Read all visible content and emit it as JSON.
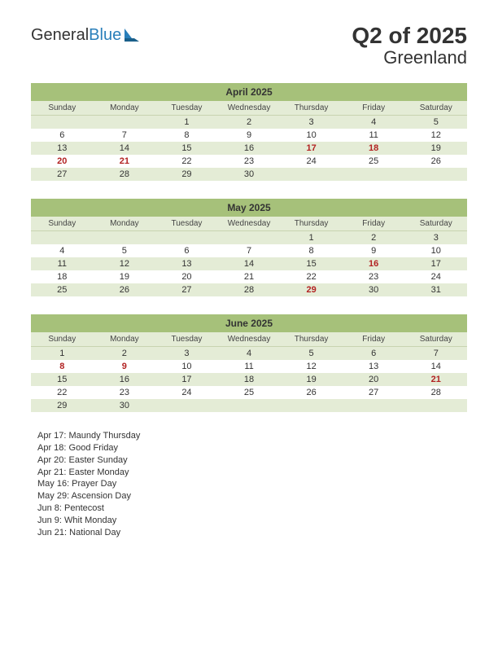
{
  "logo": {
    "text_a": "General",
    "text_b": "Blue"
  },
  "title": {
    "main": "Q2 of 2025",
    "sub": "Greenland"
  },
  "colors": {
    "header_bg": "#a6c17a",
    "shade_bg": "#e4ecd6",
    "holiday": "#b22222"
  },
  "day_headers": [
    "Sunday",
    "Monday",
    "Tuesday",
    "Wednesday",
    "Thursday",
    "Friday",
    "Saturday"
  ],
  "months": [
    {
      "title": "April 2025",
      "rows": [
        {
          "shade": true,
          "cells": [
            {
              "t": ""
            },
            {
              "t": ""
            },
            {
              "t": "1"
            },
            {
              "t": "2"
            },
            {
              "t": "3"
            },
            {
              "t": "4"
            },
            {
              "t": "5"
            }
          ]
        },
        {
          "shade": false,
          "cells": [
            {
              "t": "6"
            },
            {
              "t": "7"
            },
            {
              "t": "8"
            },
            {
              "t": "9"
            },
            {
              "t": "10"
            },
            {
              "t": "11"
            },
            {
              "t": "12"
            }
          ]
        },
        {
          "shade": true,
          "cells": [
            {
              "t": "13"
            },
            {
              "t": "14"
            },
            {
              "t": "15"
            },
            {
              "t": "16"
            },
            {
              "t": "17",
              "h": true
            },
            {
              "t": "18",
              "h": true
            },
            {
              "t": "19"
            }
          ]
        },
        {
          "shade": false,
          "cells": [
            {
              "t": "20",
              "h": true
            },
            {
              "t": "21",
              "h": true
            },
            {
              "t": "22"
            },
            {
              "t": "23"
            },
            {
              "t": "24"
            },
            {
              "t": "25"
            },
            {
              "t": "26"
            }
          ]
        },
        {
          "shade": true,
          "cells": [
            {
              "t": "27"
            },
            {
              "t": "28"
            },
            {
              "t": "29"
            },
            {
              "t": "30"
            },
            {
              "t": ""
            },
            {
              "t": ""
            },
            {
              "t": ""
            }
          ]
        }
      ]
    },
    {
      "title": "May 2025",
      "rows": [
        {
          "shade": true,
          "cells": [
            {
              "t": ""
            },
            {
              "t": ""
            },
            {
              "t": ""
            },
            {
              "t": ""
            },
            {
              "t": "1"
            },
            {
              "t": "2"
            },
            {
              "t": "3"
            }
          ]
        },
        {
          "shade": false,
          "cells": [
            {
              "t": "4"
            },
            {
              "t": "5"
            },
            {
              "t": "6"
            },
            {
              "t": "7"
            },
            {
              "t": "8"
            },
            {
              "t": "9"
            },
            {
              "t": "10"
            }
          ]
        },
        {
          "shade": true,
          "cells": [
            {
              "t": "11"
            },
            {
              "t": "12"
            },
            {
              "t": "13"
            },
            {
              "t": "14"
            },
            {
              "t": "15"
            },
            {
              "t": "16",
              "h": true
            },
            {
              "t": "17"
            }
          ]
        },
        {
          "shade": false,
          "cells": [
            {
              "t": "18"
            },
            {
              "t": "19"
            },
            {
              "t": "20"
            },
            {
              "t": "21"
            },
            {
              "t": "22"
            },
            {
              "t": "23"
            },
            {
              "t": "24"
            }
          ]
        },
        {
          "shade": true,
          "cells": [
            {
              "t": "25"
            },
            {
              "t": "26"
            },
            {
              "t": "27"
            },
            {
              "t": "28"
            },
            {
              "t": "29",
              "h": true
            },
            {
              "t": "30"
            },
            {
              "t": "31"
            }
          ]
        }
      ]
    },
    {
      "title": "June 2025",
      "rows": [
        {
          "shade": true,
          "cells": [
            {
              "t": "1"
            },
            {
              "t": "2"
            },
            {
              "t": "3"
            },
            {
              "t": "4"
            },
            {
              "t": "5"
            },
            {
              "t": "6"
            },
            {
              "t": "7"
            }
          ]
        },
        {
          "shade": false,
          "cells": [
            {
              "t": "8",
              "h": true
            },
            {
              "t": "9",
              "h": true
            },
            {
              "t": "10"
            },
            {
              "t": "11"
            },
            {
              "t": "12"
            },
            {
              "t": "13"
            },
            {
              "t": "14"
            }
          ]
        },
        {
          "shade": true,
          "cells": [
            {
              "t": "15"
            },
            {
              "t": "16"
            },
            {
              "t": "17"
            },
            {
              "t": "18"
            },
            {
              "t": "19"
            },
            {
              "t": "20"
            },
            {
              "t": "21",
              "h": true
            }
          ]
        },
        {
          "shade": false,
          "cells": [
            {
              "t": "22"
            },
            {
              "t": "23"
            },
            {
              "t": "24"
            },
            {
              "t": "25"
            },
            {
              "t": "26"
            },
            {
              "t": "27"
            },
            {
              "t": "28"
            }
          ]
        },
        {
          "shade": true,
          "cells": [
            {
              "t": "29"
            },
            {
              "t": "30"
            },
            {
              "t": ""
            },
            {
              "t": ""
            },
            {
              "t": ""
            },
            {
              "t": ""
            },
            {
              "t": ""
            }
          ]
        }
      ]
    }
  ],
  "holidays": [
    "Apr 17: Maundy Thursday",
    "Apr 18: Good Friday",
    "Apr 20: Easter Sunday",
    "Apr 21: Easter Monday",
    "May 16: Prayer Day",
    "May 29: Ascension Day",
    "Jun 8: Pentecost",
    "Jun 9: Whit Monday",
    "Jun 21: National Day"
  ]
}
